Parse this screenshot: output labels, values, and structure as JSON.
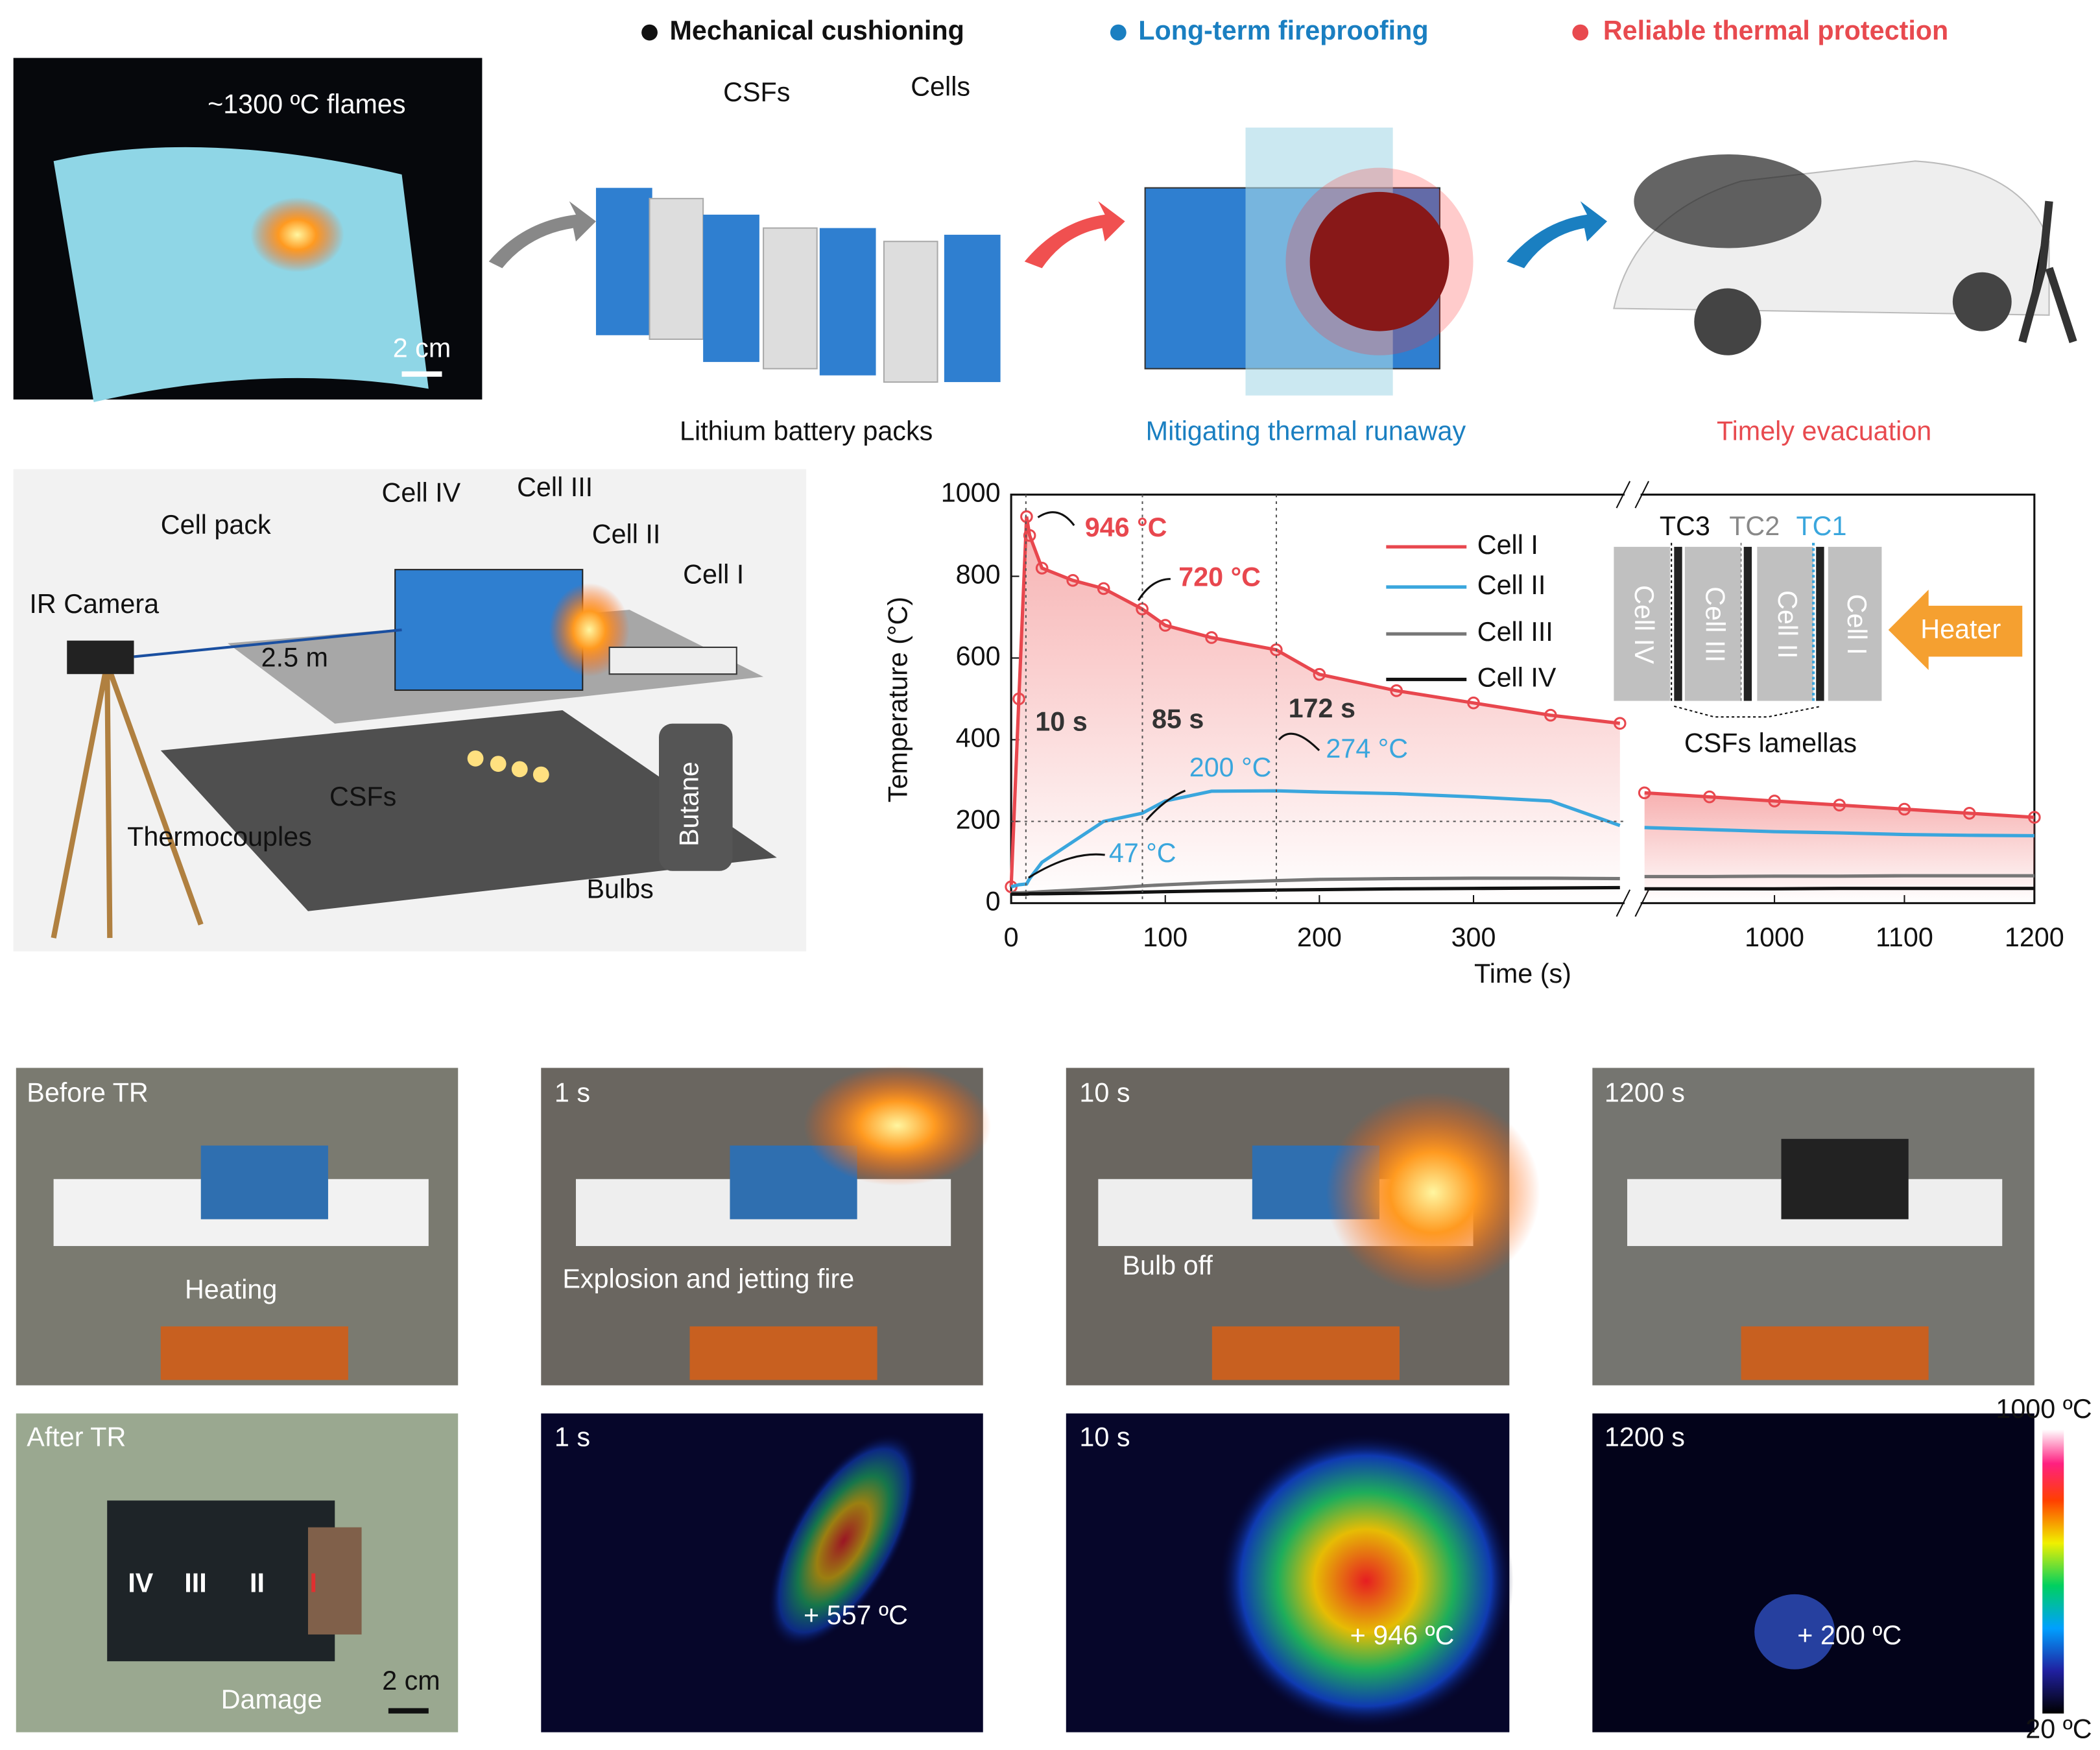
{
  "top": {
    "photo_label": "~1300 ºC flames",
    "photo_scale": "2 cm",
    "features": [
      "Mechanical cushioning",
      "Long-term fireproofing",
      "Reliable thermal protection"
    ],
    "pack_labels": [
      "CSFs",
      "Cells"
    ],
    "captions": [
      "Lithium battery packs",
      "Mitigating thermal runaway",
      "Timely evacuation"
    ]
  },
  "setup": {
    "labels": [
      "Cell pack",
      "Cell IV",
      "Cell III",
      "Cell II",
      "Cell I",
      "IR Camera",
      "2.5 m",
      "CSFs",
      "Thermocouples",
      "Bulbs",
      "Butane"
    ]
  },
  "chart_data": {
    "type": "line",
    "xlabel": "Time (s)",
    "ylabel": "Temperature (°C)",
    "xlim": [
      0,
      1200
    ],
    "x_break": [
      398,
      897
    ],
    "ylim": [
      0,
      1000
    ],
    "xticks": [
      0,
      100,
      200,
      300,
      1000,
      1100,
      1200
    ],
    "yticks": [
      0,
      200,
      400,
      600,
      800,
      1000
    ],
    "x": [
      0,
      5,
      10,
      12,
      20,
      40,
      60,
      85,
      100,
      130,
      172,
      200,
      250,
      300,
      350,
      395,
      900,
      950,
      1000,
      1050,
      1100,
      1150,
      1200
    ],
    "series": [
      {
        "name": "Cell I",
        "color": "#e8474e",
        "markers": true,
        "values": [
          40,
          500,
          946,
          900,
          820,
          790,
          770,
          720,
          680,
          650,
          620,
          560,
          520,
          490,
          460,
          440,
          270,
          260,
          250,
          240,
          230,
          220,
          210
        ]
      },
      {
        "name": "Cell II",
        "color": "#3aa6dd",
        "values": [
          40,
          45,
          47,
          60,
          100,
          150,
          200,
          220,
          250,
          274,
          275,
          272,
          268,
          260,
          250,
          190,
          185,
          180,
          175,
          172,
          168,
          166,
          165
        ]
      },
      {
        "name": "Cell III",
        "color": "#777777",
        "values": [
          25,
          25,
          26,
          26,
          28,
          32,
          36,
          42,
          45,
          50,
          55,
          58,
          60,
          61,
          61,
          60,
          65,
          65,
          66,
          66,
          67,
          67,
          67
        ]
      },
      {
        "name": "Cell IV",
        "color": "#111111",
        "values": [
          22,
          22,
          22,
          23,
          23,
          24,
          25,
          27,
          28,
          30,
          32,
          33,
          35,
          36,
          37,
          38,
          35,
          35,
          35,
          36,
          36,
          36,
          36
        ]
      }
    ],
    "annotations": [
      "946 °C",
      "720 °C",
      "10 s",
      "85 s",
      "172 s",
      "200 °C",
      "274 °C",
      "47 °C"
    ],
    "inset": {
      "tcs": [
        "TC3",
        "TC2",
        "TC1"
      ],
      "cells": [
        "Cell IV",
        "Cell III",
        "Cell II",
        "Cell I"
      ],
      "heater": "Heater",
      "lamellas": "CSFs lamellas"
    }
  },
  "photos": [
    {
      "label": "Before TR",
      "note": "Heating"
    },
    {
      "label": "1 s",
      "note": "Explosion and jetting fire"
    },
    {
      "label": "10 s",
      "note": "Bulb off"
    },
    {
      "label": "1200 s"
    }
  ],
  "after": {
    "label": "After TR",
    "cells": [
      "IV",
      "III",
      "II",
      "I"
    ],
    "note": "Damage",
    "scale": "2 cm"
  },
  "thermal": [
    {
      "label": "1 s",
      "reading": "+ 557 ºC"
    },
    {
      "label": "10 s",
      "reading": "+ 946 ºC"
    },
    {
      "label": "1200 s",
      "reading": "+ 200 ºC"
    }
  ],
  "colorbar": {
    "max": "1000 ºC",
    "min": "20 ºC"
  }
}
